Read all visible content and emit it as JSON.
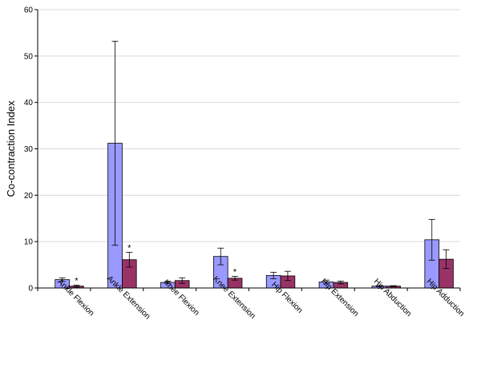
{
  "chart_data": {
    "type": "bar",
    "ylabel": "Co-contraction Index",
    "xlabel": "",
    "ylim": [
      0,
      60
    ],
    "yticks": [
      0,
      10,
      20,
      30,
      40,
      50,
      60
    ],
    "grid": true,
    "categories": [
      "Ankle Flexion",
      "Ankle Extension",
      "Knee Flexion",
      "Knee Extension",
      "Hip Flexion",
      "Hip Extension",
      "Hip Abduction",
      "Hip Adduction"
    ],
    "series": [
      {
        "color": "#9999ff",
        "values": [
          1.8,
          31.2,
          1.2,
          6.8,
          2.7,
          1.3,
          0.4,
          10.4
        ],
        "error": [
          0.4,
          22.0,
          0.3,
          1.8,
          0.7,
          0.4,
          0.1,
          4.4
        ]
      },
      {
        "color": "#993366",
        "values": [
          0.4,
          6.1,
          1.6,
          2.1,
          2.6,
          1.2,
          0.4,
          6.2
        ],
        "error": [
          0.2,
          1.6,
          0.6,
          0.4,
          1.0,
          0.3,
          0.1,
          2.0
        ]
      }
    ],
    "annotations": [
      {
        "category": "Ankle Flexion",
        "series": 1,
        "text": "*"
      },
      {
        "category": "Ankle Extension",
        "series": 1,
        "text": "*"
      },
      {
        "category": "Knee Extension",
        "series": 1,
        "text": "*"
      }
    ]
  }
}
